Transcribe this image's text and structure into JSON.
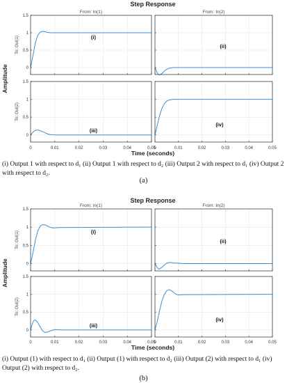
{
  "colors": {
    "line": "#3a8fd6",
    "axes": "#262626",
    "grid": "#e6e6e6"
  },
  "figures": [
    {
      "title": "Step Response",
      "xlabel": "Time (seconds)",
      "ylabel": "Amplitude",
      "col_titles": [
        "From: In(1)",
        "From: In(2)"
      ],
      "row_labels": [
        "To: Out(1)",
        "To: Out(2)"
      ],
      "caption": "(i) Output 1 with respect to d₁ (ii) Output 1 with respect to d₂ (iii) Output 2 with respect to d₁ (iv) Output 2 with respect to d₂.",
      "sublabel": "(a)"
    },
    {
      "title": "Step Response",
      "xlabel": "Time (seconds)",
      "ylabel": "Amplitude",
      "col_titles": [
        "From: In(1)",
        "From: In(2)"
      ],
      "row_labels": [
        "To: Out(1)",
        "To: Out(2)"
      ],
      "caption": "(i) Output (1) with respect to d₁ (ii) Output (1) with respect to d₂ (iii) Output (2) with respect to d₁ (iv) Output (2) with respect to d₂.",
      "sublabel": "(b)"
    }
  ],
  "chart_data": [
    {
      "type": "line",
      "title": "Step Response",
      "xlabel": "Time (seconds)",
      "ylabel": "Amplitude",
      "xlim": [
        0,
        0.05
      ],
      "ylim": [
        -0.2,
        1.5
      ],
      "x_ticks": [
        "0",
        "0.01",
        "0.02",
        "0.03",
        "0.04",
        "0.05"
      ],
      "y_ticks": [
        "0",
        "0.5",
        "1",
        "1.5"
      ],
      "grid": true,
      "panels": [
        {
          "label": "(i)",
          "input": "From: In(1)",
          "output": "To: Out(1)",
          "x": [
            0,
            0.001,
            0.002,
            0.003,
            0.004,
            0.005,
            0.006,
            0.007,
            0.008,
            0.01,
            0.015,
            0.05
          ],
          "y": [
            0,
            0.35,
            0.72,
            0.93,
            1.02,
            1.04,
            1.03,
            1.01,
            1.0,
            1.0,
            1.0,
            1.0
          ]
        },
        {
          "label": "(ii)",
          "input": "From: In(2)",
          "output": "To: Out(1)",
          "x": [
            0,
            0.0005,
            0.001,
            0.0015,
            0.002,
            0.003,
            0.004,
            0.005,
            0.006,
            0.008,
            0.01,
            0.05
          ],
          "y": [
            0,
            -0.08,
            -0.16,
            -0.2,
            -0.21,
            -0.17,
            -0.1,
            -0.05,
            -0.02,
            0,
            0,
            0
          ]
        },
        {
          "label": "(iii)",
          "input": "From: In(1)",
          "output": "To: Out(2)",
          "x": [
            0,
            0.001,
            0.002,
            0.003,
            0.004,
            0.005,
            0.006,
            0.007,
            0.008,
            0.01,
            0.012,
            0.05
          ],
          "y": [
            0,
            0.08,
            0.13,
            0.14,
            0.12,
            0.09,
            0.06,
            0.03,
            0.01,
            0,
            0,
            0
          ]
        },
        {
          "label": "(iv)",
          "input": "From: In(2)",
          "output": "To: Out(2)",
          "x": [
            0,
            0.001,
            0.002,
            0.003,
            0.004,
            0.005,
            0.006,
            0.007,
            0.008,
            0.01,
            0.05
          ],
          "y": [
            0,
            0.28,
            0.55,
            0.75,
            0.88,
            0.95,
            0.98,
            0.99,
            1.0,
            1.0,
            1.0
          ]
        }
      ]
    },
    {
      "type": "line",
      "title": "Step Response",
      "xlabel": "Time (seconds)",
      "ylabel": "Amplitude",
      "xlim": [
        0,
        0.05
      ],
      "ylim": [
        -0.2,
        1.5
      ],
      "x_ticks": [
        "0",
        "0.01",
        "0.02",
        "0.03",
        "0.04",
        "0.05"
      ],
      "y_ticks": [
        "0",
        "0.5",
        "1",
        "1.5"
      ],
      "grid": true,
      "panels": [
        {
          "label": "(i)",
          "input": "From: In(1)",
          "output": "To: Out(1)",
          "x": [
            0,
            0.001,
            0.002,
            0.003,
            0.004,
            0.005,
            0.006,
            0.007,
            0.008,
            0.009,
            0.01,
            0.012,
            0.05
          ],
          "y": [
            0,
            0.3,
            0.65,
            0.9,
            1.03,
            1.07,
            1.06,
            1.03,
            1.0,
            0.98,
            0.98,
            0.99,
            1.0
          ]
        },
        {
          "label": "(ii)",
          "input": "From: In(2)",
          "output": "To: Out(1)",
          "x": [
            0,
            0.0005,
            0.001,
            0.0015,
            0.002,
            0.003,
            0.004,
            0.005,
            0.006,
            0.007,
            0.008,
            0.01,
            0.012,
            0.05
          ],
          "y": [
            0,
            -0.06,
            -0.12,
            -0.15,
            -0.14,
            -0.1,
            -0.04,
            0.01,
            0.03,
            0.03,
            0.02,
            0.01,
            0,
            0
          ]
        },
        {
          "label": "(iii)",
          "input": "From: In(1)",
          "output": "To: Out(2)",
          "x": [
            0,
            0.0005,
            0.001,
            0.0015,
            0.002,
            0.0025,
            0.003,
            0.004,
            0.005,
            0.006,
            0.007,
            0.008,
            0.01,
            0.012,
            0.05
          ],
          "y": [
            0,
            0.12,
            0.22,
            0.27,
            0.28,
            0.25,
            0.2,
            0.08,
            -0.03,
            -0.07,
            -0.06,
            -0.03,
            0.01,
            0,
            0
          ]
        },
        {
          "label": "(iv)",
          "input": "From: In(2)",
          "output": "To: Out(2)",
          "x": [
            0,
            0.001,
            0.002,
            0.003,
            0.004,
            0.005,
            0.006,
            0.007,
            0.008,
            0.009,
            0.01,
            0.012,
            0.05
          ],
          "y": [
            0,
            0.25,
            0.55,
            0.82,
            1.0,
            1.1,
            1.13,
            1.1,
            1.05,
            1.0,
            0.98,
            0.99,
            1.0
          ]
        }
      ]
    }
  ]
}
